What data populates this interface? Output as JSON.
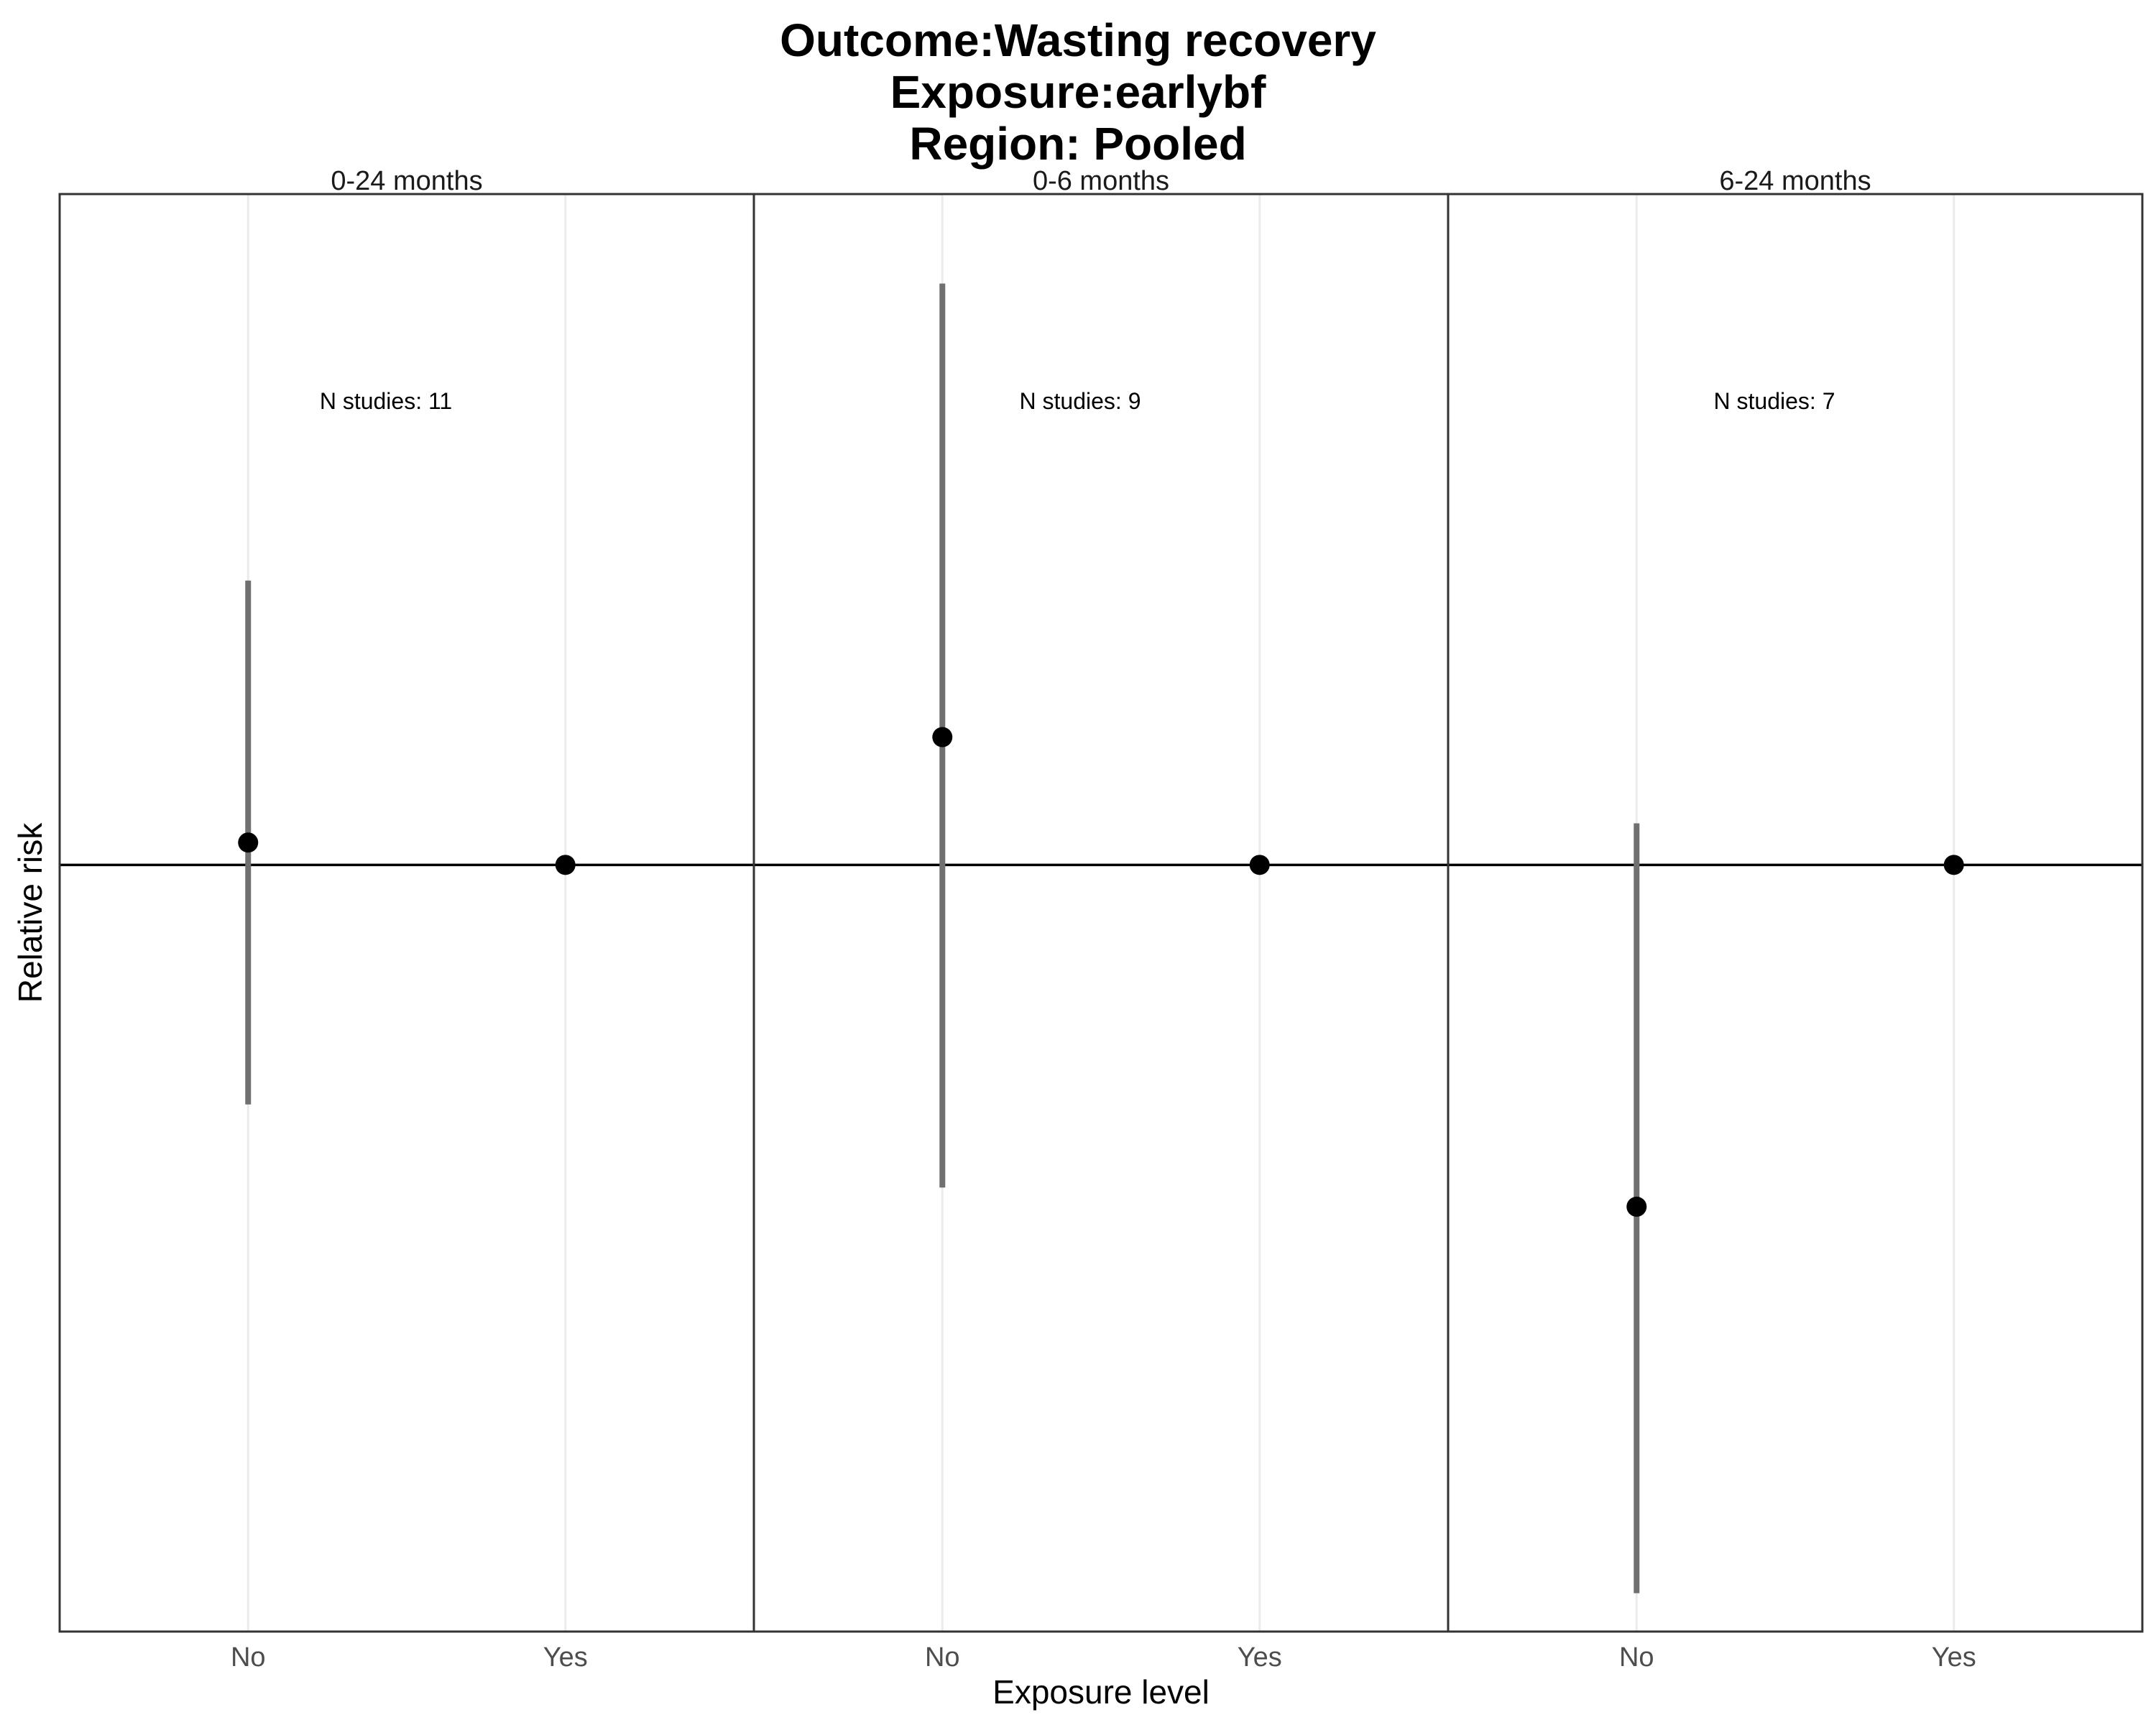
{
  "title_lines": [
    "Outcome:Wasting recovery",
    "Exposure:earlybf",
    "Region: Pooled"
  ],
  "chart_data": {
    "type": "scatter",
    "title": "Outcome:Wasting recovery\nExposure:earlybf\nRegion: Pooled",
    "xlabel": "Exposure level",
    "ylabel": "Relative risk",
    "categories": [
      "No",
      "Yes"
    ],
    "reference_line": 1.0,
    "ylim": [
      0.76,
      1.21
    ],
    "panels": [
      {
        "label": "0-24 months",
        "n_label": "N studies: 11",
        "points": [
          {
            "x": "No",
            "y": 1.007,
            "lower": 0.925,
            "upper": 1.089
          },
          {
            "x": "Yes",
            "y": 1.0
          }
        ]
      },
      {
        "label": "0-6 months",
        "n_label": "N studies: 9",
        "points": [
          {
            "x": "No",
            "y": 1.04,
            "lower": 0.899,
            "upper": 1.182
          },
          {
            "x": "Yes",
            "y": 1.0
          }
        ]
      },
      {
        "label": "6-24 months",
        "n_label": "N studies: 7",
        "points": [
          {
            "x": "No",
            "y": 0.893,
            "lower": 0.772,
            "upper": 1.013
          },
          {
            "x": "Yes",
            "y": 1.0
          }
        ]
      }
    ],
    "colors": {
      "point": "#000000",
      "ci": "#707070",
      "grid": "#ebebeb",
      "border": "#333333"
    }
  }
}
